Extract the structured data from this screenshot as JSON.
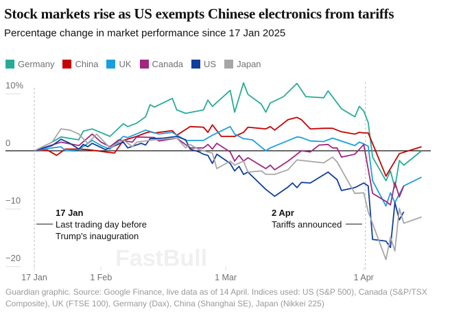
{
  "title": "Stock markets rise as US exempts Chinese electronics from tariffs",
  "subtitle": "Percentage change in market performance since 17 Jan 2025",
  "footer": "Guardian graphic. Source: Google Finance, live data as of 14 April. Indices used: US (S&P 500), Canada (S&P/TSX Composite), UK (FTSE 100), Germany (Dax), China (Shanghai SE), Japan (Nikkei 225)",
  "watermark": "FastBull",
  "chart_data": {
    "type": "line",
    "title": "Stock markets rise as US exempts Chinese electronics from tariffs",
    "subtitle": "Percentage change in market performance since 17 Jan 2025",
    "x_type": "date",
    "xlim": [
      "2025-01-17",
      "2025-04-14"
    ],
    "ylim": [
      -20,
      10
    ],
    "y_ticks": [
      {
        "value": 10,
        "label": "10%"
      },
      {
        "value": 0,
        "label": "0"
      },
      {
        "value": -10,
        "label": "−10"
      },
      {
        "value": -20,
        "label": "−20"
      }
    ],
    "x_ticks": [
      {
        "date": "2025-01-17",
        "label": "17 Jan"
      },
      {
        "date": "2025-02-01",
        "label": "1 Feb"
      },
      {
        "date": "2025-03-01",
        "label": "1 Mar"
      },
      {
        "date": "2025-04-01",
        "label": "1 Apr"
      }
    ],
    "grid": false,
    "legend_position": "top-left",
    "annotations": [
      {
        "date": "2025-01-17",
        "heading": "17 Jan",
        "lines": [
          "Last trading day before",
          "Trump's inauguration"
        ]
      },
      {
        "date": "2025-04-02",
        "heading": "2 Apr",
        "lines": [
          "Tariffs announced"
        ]
      }
    ],
    "series": [
      {
        "name": "Germany",
        "color": "#27ab98",
        "points": [
          [
            "2025-01-17",
            0
          ],
          [
            "2025-01-21",
            1.5
          ],
          [
            "2025-01-23",
            2.4
          ],
          [
            "2025-01-27",
            1.9
          ],
          [
            "2025-01-28",
            3.4
          ],
          [
            "2025-01-30",
            3.8
          ],
          [
            "2025-02-03",
            2.5
          ],
          [
            "2025-02-06",
            4.7
          ],
          [
            "2025-02-07",
            4.2
          ],
          [
            "2025-02-09",
            4.8
          ],
          [
            "2025-02-11",
            5.9
          ],
          [
            "2025-02-12",
            8.0
          ],
          [
            "2025-02-13",
            7.6
          ],
          [
            "2025-02-17",
            9.1
          ],
          [
            "2025-02-18",
            7.1
          ],
          [
            "2025-02-20",
            6.5
          ],
          [
            "2025-02-24",
            7.1
          ],
          [
            "2025-02-25",
            8.8
          ],
          [
            "2025-02-26",
            7.7
          ],
          [
            "2025-03-02",
            10.5
          ],
          [
            "2025-03-03",
            6.7
          ],
          [
            "2025-03-05",
            11.8
          ],
          [
            "2025-03-06",
            9.8
          ],
          [
            "2025-03-09",
            8.1
          ],
          [
            "2025-03-10",
            6.7
          ],
          [
            "2025-03-11",
            8.3
          ],
          [
            "2025-03-14",
            9.4
          ],
          [
            "2025-03-17",
            11.7
          ],
          [
            "2025-03-19",
            9.4
          ],
          [
            "2025-03-23",
            9.2
          ],
          [
            "2025-03-24",
            10.4
          ],
          [
            "2025-03-27",
            7.3
          ],
          [
            "2025-03-30",
            5.9
          ],
          [
            "2025-03-31",
            7.7
          ],
          [
            "2025-04-01",
            6.9
          ],
          [
            "2025-04-02",
            4.9
          ],
          [
            "2025-04-03",
            -1.1
          ],
          [
            "2025-04-06",
            -5.2
          ],
          [
            "2025-04-07",
            -3.5
          ],
          [
            "2025-04-08",
            -6.4
          ],
          [
            "2025-04-09",
            -1.7
          ],
          [
            "2025-04-10",
            -2.5
          ],
          [
            "2025-04-14",
            0
          ]
        ]
      },
      {
        "name": "China",
        "color": "#c70000",
        "points": [
          [
            "2025-01-17",
            0
          ],
          [
            "2025-01-20",
            0.1
          ],
          [
            "2025-01-22",
            -0.8
          ],
          [
            "2025-01-24",
            0.3
          ],
          [
            "2025-01-27",
            0.3
          ],
          [
            "2025-01-29",
            0.2
          ],
          [
            "2025-02-02",
            -0.2
          ],
          [
            "2025-02-04",
            -0.4
          ],
          [
            "2025-02-06",
            1.8
          ],
          [
            "2025-02-09",
            2.5
          ],
          [
            "2025-02-11",
            3.1
          ],
          [
            "2025-02-12",
            3.3
          ],
          [
            "2025-02-13",
            3.1
          ],
          [
            "2025-02-15",
            3.3
          ],
          [
            "2025-02-17",
            3.5
          ],
          [
            "2025-02-18",
            2.7
          ],
          [
            "2025-02-19",
            3.2
          ],
          [
            "2025-02-21",
            4.2
          ],
          [
            "2025-02-24",
            4.1
          ],
          [
            "2025-02-25",
            3.2
          ],
          [
            "2025-02-26",
            4.5
          ],
          [
            "2025-02-28",
            2.5
          ],
          [
            "2025-03-03",
            2.5
          ],
          [
            "2025-03-05",
            3.2
          ],
          [
            "2025-03-06",
            4.1
          ],
          [
            "2025-03-10",
            3.8
          ],
          [
            "2025-03-11",
            4.2
          ],
          [
            "2025-03-12",
            3.6
          ],
          [
            "2025-03-15",
            5.4
          ],
          [
            "2025-03-17",
            5.8
          ],
          [
            "2025-03-18",
            5.4
          ],
          [
            "2025-03-20",
            3.8
          ],
          [
            "2025-03-23",
            3.9
          ],
          [
            "2025-03-25",
            3.9
          ],
          [
            "2025-03-27",
            3.3
          ],
          [
            "2025-03-30",
            2.9
          ],
          [
            "2025-03-31",
            3.2
          ],
          [
            "2025-04-01",
            3.1
          ],
          [
            "2025-04-02",
            3.1
          ],
          [
            "2025-04-06",
            -4.4
          ],
          [
            "2025-04-09",
            -0.5
          ],
          [
            "2025-04-14",
            0.7
          ]
        ]
      },
      {
        "name": "UK",
        "color": "#1a9fde",
        "points": [
          [
            "2025-01-17",
            0
          ],
          [
            "2025-01-21",
            0.5
          ],
          [
            "2025-01-23",
            0.7
          ],
          [
            "2025-01-24",
            0
          ],
          [
            "2025-01-27",
            0.2
          ],
          [
            "2025-01-30",
            1.8
          ],
          [
            "2025-02-01",
            0.9
          ],
          [
            "2025-02-03",
            0.3
          ],
          [
            "2025-02-06",
            2.5
          ],
          [
            "2025-02-07",
            2.3
          ],
          [
            "2025-02-11",
            3.6
          ],
          [
            "2025-02-14",
            2.9
          ],
          [
            "2025-02-17",
            3.2
          ],
          [
            "2025-02-20",
            1.8
          ],
          [
            "2025-02-24",
            1.8
          ],
          [
            "2025-02-26",
            2.7
          ],
          [
            "2025-03-02",
            4.2
          ],
          [
            "2025-03-03",
            2.9
          ],
          [
            "2025-03-05",
            2.1
          ],
          [
            "2025-03-07",
            1.9
          ],
          [
            "2025-03-10",
            0
          ],
          [
            "2025-03-11",
            0.5
          ],
          [
            "2025-03-17",
            2.4
          ],
          [
            "2025-03-18",
            2.3
          ],
          [
            "2025-03-20",
            1.7
          ],
          [
            "2025-03-23",
            1.6
          ],
          [
            "2025-03-25",
            2.2
          ],
          [
            "2025-03-30",
            0.9
          ],
          [
            "2025-03-31",
            1.5
          ],
          [
            "2025-04-01",
            1.2
          ],
          [
            "2025-04-02",
            0.8
          ],
          [
            "2025-04-03",
            -5.2
          ],
          [
            "2025-04-06",
            -9.6
          ],
          [
            "2025-04-07",
            -7.3
          ],
          [
            "2025-04-08",
            -9.0
          ],
          [
            "2025-04-10",
            -6.1
          ],
          [
            "2025-04-14",
            -4.6
          ]
        ]
      },
      {
        "name": "Canada",
        "color": "#a1267f",
        "points": [
          [
            "2025-01-17",
            0
          ],
          [
            "2025-01-23",
            1.5
          ],
          [
            "2025-01-27",
            0.9
          ],
          [
            "2025-01-30",
            2.9
          ],
          [
            "2025-02-01",
            1.5
          ],
          [
            "2025-02-03",
            0.7
          ],
          [
            "2025-02-05",
            1.9
          ],
          [
            "2025-02-08",
            1.5
          ],
          [
            "2025-02-09",
            2.4
          ],
          [
            "2025-02-13",
            2.3
          ],
          [
            "2025-02-14",
            1.7
          ],
          [
            "2025-02-18",
            2.2
          ],
          [
            "2025-02-21",
            0.5
          ],
          [
            "2025-02-24",
            0.5
          ],
          [
            "2025-02-25",
            1.1
          ],
          [
            "2025-02-26",
            0.3
          ],
          [
            "2025-02-27",
            1.3
          ],
          [
            "2025-03-02",
            -0.2
          ],
          [
            "2025-03-03",
            -1.8
          ],
          [
            "2025-03-04",
            -0.8
          ],
          [
            "2025-03-05",
            -1.8
          ],
          [
            "2025-03-06",
            -1.2
          ],
          [
            "2025-03-10",
            -3.1
          ],
          [
            "2025-03-11",
            -2.5
          ],
          [
            "2025-03-12",
            -3.3
          ],
          [
            "2025-03-15",
            -1.8
          ],
          [
            "2025-03-16",
            -1.2
          ],
          [
            "2025-03-18",
            0
          ],
          [
            "2025-03-20",
            -0.2
          ],
          [
            "2025-03-22",
            1.0
          ],
          [
            "2025-03-24",
            1.1
          ],
          [
            "2025-03-25",
            0.5
          ],
          [
            "2025-03-26",
            0.5
          ],
          [
            "2025-03-27",
            -1.1
          ],
          [
            "2025-03-30",
            -0.6
          ],
          [
            "2025-04-01",
            1.1
          ],
          [
            "2025-04-03",
            -7.4
          ],
          [
            "2025-04-06",
            -8.8
          ],
          [
            "2025-04-07",
            -9.4
          ],
          [
            "2025-04-08",
            -5.5
          ],
          [
            "2025-04-09",
            -8.0
          ],
          [
            "2025-04-10",
            -6.1
          ]
        ]
      },
      {
        "name": "US",
        "color": "#0f3d9c",
        "points": [
          [
            "2025-01-17",
            0
          ],
          [
            "2025-01-21",
            0.9
          ],
          [
            "2025-01-23",
            2.0
          ],
          [
            "2025-01-25",
            1.3
          ],
          [
            "2025-01-27",
            0.3
          ],
          [
            "2025-01-28",
            1.1
          ],
          [
            "2025-01-29",
            0.7
          ],
          [
            "2025-01-30",
            1.3
          ],
          [
            "2025-02-02",
            0.2
          ],
          [
            "2025-02-06",
            1.5
          ],
          [
            "2025-02-07",
            0.5
          ],
          [
            "2025-02-10",
            1.3
          ],
          [
            "2025-02-11",
            1.0
          ],
          [
            "2025-02-12",
            2.1
          ],
          [
            "2025-02-15",
            2.2
          ],
          [
            "2025-02-18",
            2.5
          ],
          [
            "2025-02-20",
            1.9
          ],
          [
            "2025-02-21",
            0.3
          ],
          [
            "2025-02-23",
            -0.2
          ],
          [
            "2025-02-24",
            -0.6
          ],
          [
            "2025-02-25",
            -0.8
          ],
          [
            "2025-02-26",
            -2.2
          ],
          [
            "2025-02-27",
            -0.6
          ],
          [
            "2025-03-02",
            -2.2
          ],
          [
            "2025-03-03",
            -3.5
          ],
          [
            "2025-03-04",
            -2.7
          ],
          [
            "2025-03-05",
            -4.1
          ],
          [
            "2025-03-06",
            -3.7
          ],
          [
            "2025-03-10",
            -6.7
          ],
          [
            "2025-03-12",
            -7.9
          ],
          [
            "2025-03-15",
            -6.3
          ],
          [
            "2025-03-16",
            -5.6
          ],
          [
            "2025-03-17",
            -6.4
          ],
          [
            "2025-03-18",
            -5.5
          ],
          [
            "2025-03-20",
            -5.6
          ],
          [
            "2025-03-24",
            -3.7
          ],
          [
            "2025-03-26",
            -5.0
          ],
          [
            "2025-03-27",
            -6.9
          ],
          [
            "2025-03-30",
            -6.4
          ],
          [
            "2025-04-01",
            -5.6
          ],
          [
            "2025-04-02",
            -6.1
          ],
          [
            "2025-04-03",
            -15.4
          ],
          [
            "2025-04-05",
            -15.6
          ],
          [
            "2025-04-06",
            -15.7
          ],
          [
            "2025-04-07",
            -16.8
          ],
          [
            "2025-04-08",
            -9.0
          ],
          [
            "2025-04-09",
            -12.0
          ],
          [
            "2025-04-10",
            -10.6
          ]
        ]
      },
      {
        "name": "Japan",
        "color": "#a6a6a6",
        "points": [
          [
            "2025-01-17",
            0
          ],
          [
            "2025-01-21",
            1.5
          ],
          [
            "2025-01-23",
            3.8
          ],
          [
            "2025-01-25",
            3.6
          ],
          [
            "2025-01-27",
            2.9
          ],
          [
            "2025-01-29",
            1.3
          ],
          [
            "2025-01-31",
            2.9
          ],
          [
            "2025-02-03",
            0.5
          ],
          [
            "2025-02-06",
            1.9
          ],
          [
            "2025-02-08",
            0.7
          ],
          [
            "2025-02-09",
            1.5
          ],
          [
            "2025-02-13",
            1.9
          ],
          [
            "2025-02-18",
            2.2
          ],
          [
            "2025-02-20",
            0.5
          ],
          [
            "2025-02-21",
            1.1
          ],
          [
            "2025-02-23",
            0.2
          ],
          [
            "2025-02-25",
            -0.2
          ],
          [
            "2025-02-26",
            -0.4
          ],
          [
            "2025-02-27",
            -3.1
          ],
          [
            "2025-03-02",
            -1.8
          ],
          [
            "2025-03-03",
            -2.5
          ],
          [
            "2025-03-05",
            -1.8
          ],
          [
            "2025-03-06",
            -3.7
          ],
          [
            "2025-03-09",
            -3.5
          ],
          [
            "2025-03-10",
            -4.1
          ],
          [
            "2025-03-12",
            -4.1
          ],
          [
            "2025-03-15",
            -3.3
          ],
          [
            "2025-03-17",
            -1.6
          ],
          [
            "2025-03-23",
            -2.1
          ],
          [
            "2025-03-25",
            -1.1
          ],
          [
            "2025-03-26",
            -1.9
          ],
          [
            "2025-03-30",
            -7.4
          ],
          [
            "2025-04-01",
            -7.3
          ],
          [
            "2025-04-02",
            -10.6
          ],
          [
            "2025-04-06",
            -18.9
          ],
          [
            "2025-04-07",
            -15.0
          ],
          [
            "2025-04-08",
            -17.4
          ],
          [
            "2025-04-09",
            -10.0
          ],
          [
            "2025-04-10",
            -12.6
          ],
          [
            "2025-04-14",
            -11.5
          ]
        ]
      }
    ]
  }
}
